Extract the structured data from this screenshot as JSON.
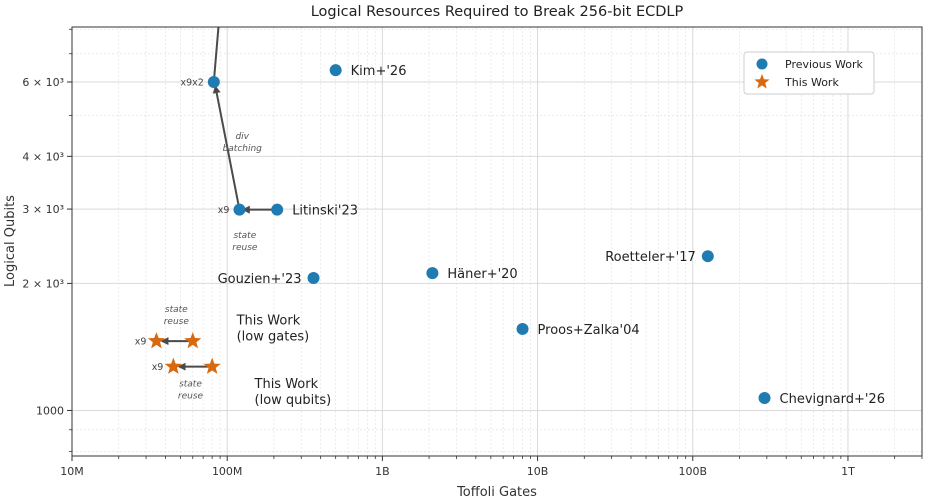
{
  "colors": {
    "previous": "#1f7bb0",
    "this_work": "#d9690f",
    "arrow": "#4a4a4a",
    "grid_major": "#d9d9d9",
    "grid_minor": "#e6e6e6"
  },
  "chart_data": {
    "type": "scatter",
    "title": "Logical Resources Required to Break 256-bit ECDLP",
    "xlabel": "Toffoli Gates",
    "ylabel": "Logical Qubits",
    "xscale": "log",
    "yscale": "log",
    "xlim": [
      10000000,
      3000000000000
    ],
    "ylim": [
      780,
      8100
    ],
    "grid": true,
    "legend_position": "upper-right",
    "x_ticks": [
      {
        "value": 10000000,
        "label": "10M"
      },
      {
        "value": 100000000,
        "label": "100M"
      },
      {
        "value": 1000000000,
        "label": "1B"
      },
      {
        "value": 10000000000,
        "label": "10B"
      },
      {
        "value": 100000000000,
        "label": "100B"
      },
      {
        "value": 1000000000000,
        "label": "1T"
      }
    ],
    "y_ticks": [
      {
        "value": 1000,
        "label": "1000"
      },
      {
        "value": 2000,
        "label": "2 × 10³"
      },
      {
        "value": 3000,
        "label": "3 × 10³"
      },
      {
        "value": 4000,
        "label": "4 × 10³"
      },
      {
        "value": 6000,
        "label": "6 × 10³"
      }
    ],
    "series": [
      {
        "name": "Previous Work",
        "marker": "circle",
        "points": [
          {
            "x": 500000000,
            "y": 6400,
            "label": "Kim+'26",
            "label_side": "right"
          },
          {
            "x": 210000000,
            "y": 2990,
            "label": "Litinski'23",
            "label_side": "right"
          },
          {
            "x": 360000000,
            "y": 2060,
            "label": "Gouzien+'23",
            "label_side": "left"
          },
          {
            "x": 2100000000,
            "y": 2115,
            "label": "Häner+'20",
            "label_side": "right"
          },
          {
            "x": 8000000000,
            "y": 1560,
            "label": "Proos+Zalka'04",
            "label_side": "right"
          },
          {
            "x": 125000000000,
            "y": 2320,
            "label": "Roetteler+'17",
            "label_side": "left"
          },
          {
            "x": 290000000000,
            "y": 1070,
            "label": "Chevignard+'26",
            "label_side": "right"
          },
          {
            "x": 120000000,
            "y": 2990,
            "label": "",
            "label_side": "right"
          },
          {
            "x": 82000000,
            "y": 6000,
            "label": "",
            "label_side": "right"
          }
        ]
      },
      {
        "name": "This Work",
        "marker": "star",
        "points": [
          {
            "x": 60000000,
            "y": 1460,
            "label": "",
            "label_side": "right"
          },
          {
            "x": 35000000,
            "y": 1460,
            "label": "",
            "label_side": "right"
          },
          {
            "x": 80000000,
            "y": 1270,
            "label": "",
            "label_side": "right"
          },
          {
            "x": 45000000,
            "y": 1270,
            "label": "",
            "label_side": "right"
          }
        ]
      }
    ],
    "text_labels": [
      {
        "x": 115000000,
        "y": 1600,
        "lines": [
          "This Work",
          "(low gates)"
        ]
      },
      {
        "x": 150000000,
        "y": 1130,
        "lines": [
          "This Work",
          "(low qubits)"
        ]
      }
    ],
    "arrows": [
      {
        "from": [
          205000000,
          2990
        ],
        "to": [
          127000000,
          2990
        ]
      },
      {
        "from": [
          120000000,
          2990
        ],
        "to": [
          84000000,
          5850
        ]
      },
      {
        "from": [
          90000000,
          9000
        ],
        "to": [
          82000000,
          6000
        ]
      },
      {
        "from": [
          58000000,
          1460
        ],
        "to": [
          38000000,
          1460
        ]
      },
      {
        "from": [
          76000000,
          1270
        ],
        "to": [
          49000000,
          1270
        ]
      }
    ],
    "annotations": [
      {
        "x": 125000000,
        "y": 4400,
        "lines": [
          "div",
          "batching"
        ]
      },
      {
        "x": 130000000,
        "y": 2560,
        "lines": [
          "state",
          "reuse"
        ]
      },
      {
        "x": 47000000,
        "y": 1710,
        "lines": [
          "state",
          "reuse"
        ]
      },
      {
        "x": 58000000,
        "y": 1140,
        "lines": [
          "state",
          "reuse"
        ]
      }
    ],
    "multipliers": [
      {
        "x": 82000000,
        "y": 6000,
        "label": "x9x2"
      },
      {
        "x": 120000000,
        "y": 2990,
        "label": "x9"
      },
      {
        "x": 35000000,
        "y": 1460,
        "label": "x9"
      },
      {
        "x": 45000000,
        "y": 1270,
        "label": "x9"
      }
    ]
  }
}
